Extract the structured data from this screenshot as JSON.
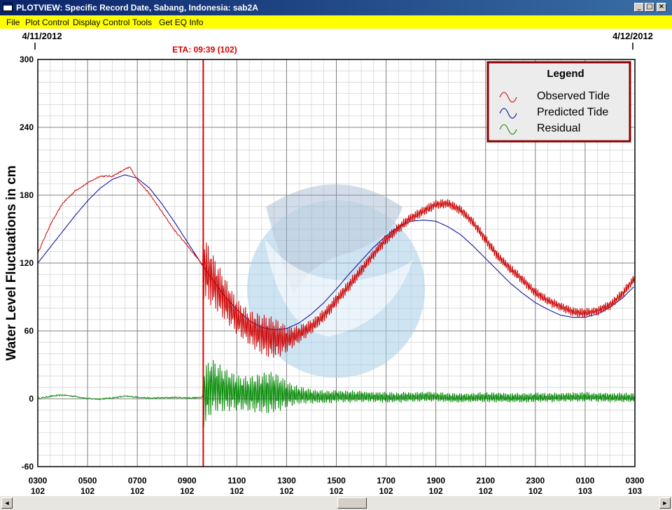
{
  "window": {
    "title": "PLOTVIEW: Specific Record Date, Sabang, Indonesia: sab2A",
    "minimize_glyph": "_",
    "maximize_glyph": "□",
    "close_glyph": "×"
  },
  "menu": [
    "File",
    "Plot Control",
    "Display Control",
    "Tools",
    "Get EQ Info"
  ],
  "scrollbar": {
    "left_glyph": "◄",
    "right_glyph": "►"
  },
  "colors": {
    "menubar": "#ffff00",
    "observed": "#cc0000",
    "predicted": "#000099",
    "residual": "#008800",
    "eta_line": "#dd0000",
    "legend_border": "#8b0000",
    "watermark": "#9fc4e0"
  },
  "chart_data": {
    "type": "line",
    "date_start": "4/11/2012",
    "date_end": "4/12/2012",
    "eta_label": "ETA: 09:39 (102)",
    "eta_hour": 9.65,
    "ylabel": "Water Level Fluctuations in cm",
    "ylim": [
      -60,
      300
    ],
    "xlim": [
      3,
      27
    ],
    "yticks": [
      300,
      240,
      180,
      120,
      60,
      0,
      -60
    ],
    "xticks": [
      {
        "x": 3,
        "time": "0300",
        "day": "102"
      },
      {
        "x": 5,
        "time": "0500",
        "day": "102"
      },
      {
        "x": 7,
        "time": "0700",
        "day": "102"
      },
      {
        "x": 9,
        "time": "0900",
        "day": "102"
      },
      {
        "x": 11,
        "time": "1100",
        "day": "102"
      },
      {
        "x": 13,
        "time": "1300",
        "day": "102"
      },
      {
        "x": 15,
        "time": "1500",
        "day": "102"
      },
      {
        "x": 17,
        "time": "1700",
        "day": "102"
      },
      {
        "x": 19,
        "time": "1900",
        "day": "102"
      },
      {
        "x": 21,
        "time": "2100",
        "day": "102"
      },
      {
        "x": 23,
        "time": "2300",
        "day": "102"
      },
      {
        "x": 25,
        "time": "0100",
        "day": "103"
      },
      {
        "x": 27,
        "time": "0300",
        "day": "103"
      }
    ],
    "grid": true,
    "legend": {
      "title": "Legend",
      "position": "top-right",
      "entries": [
        "Observed Tide",
        "Predicted Tide",
        "Residual"
      ]
    },
    "series": [
      {
        "name": "Observed Tide",
        "x": [
          3,
          3.5,
          4,
          4.5,
          5,
          5.5,
          6,
          6.5,
          6.7,
          7,
          7.5,
          8,
          8.5,
          9,
          9.5,
          10,
          10.5,
          11,
          11.5,
          12,
          12.5,
          13,
          13.5,
          14,
          14.5,
          15,
          15.5,
          16,
          16.5,
          17,
          17.5,
          18,
          18.5,
          19,
          19.5,
          20,
          20.5,
          21,
          21.5,
          22,
          22.5,
          23,
          23.5,
          24,
          24.5,
          25,
          25.5,
          26,
          26.5,
          27
        ],
        "y": [
          128,
          153,
          172,
          183,
          190,
          196,
          196,
          202,
          204,
          193,
          180,
          164,
          148,
          135,
          121,
          105,
          88,
          72,
          62,
          56,
          53,
          52,
          56,
          63,
          73,
          86,
          99,
          113,
          127,
          140,
          150,
          159,
          165,
          171,
          172,
          166,
          155,
          140,
          125,
          114,
          104,
          93,
          86,
          81,
          76,
          75,
          77,
          82,
          92,
          106
        ]
      },
      {
        "name": "Predicted Tide",
        "x": [
          3,
          3.5,
          4,
          4.5,
          5,
          5.5,
          6,
          6.5,
          7,
          7.5,
          8,
          8.5,
          9,
          9.5,
          10,
          10.5,
          11,
          11.5,
          12,
          12.5,
          13,
          13.5,
          14,
          14.5,
          15,
          15.5,
          16,
          16.5,
          17,
          17.5,
          18,
          18.5,
          19,
          19.5,
          20,
          20.5,
          21,
          21.5,
          22,
          22.5,
          23,
          23.5,
          24,
          24.5,
          25,
          25.5,
          26,
          26.5,
          27
        ],
        "y": [
          120,
          134,
          148,
          162,
          175,
          186,
          194,
          198,
          195,
          186,
          172,
          156,
          139,
          122,
          106,
          91,
          79,
          69,
          63,
          61,
          62,
          67,
          75,
          85,
          97,
          110,
          122,
          134,
          144,
          152,
          157,
          158,
          157,
          152,
          145,
          135,
          124,
          113,
          102,
          93,
          85,
          79,
          74,
          72,
          72,
          75,
          81,
          89,
          100
        ]
      },
      {
        "name": "Residual",
        "x": [
          3,
          3.5,
          4,
          4.5,
          5,
          5.5,
          6,
          6.5,
          7,
          7.5,
          8,
          8.5,
          9,
          9.5,
          9.75,
          10,
          10.5,
          11,
          11.5,
          12,
          12.5,
          13,
          13.5,
          14,
          14.5,
          15,
          15.5,
          16,
          16.5,
          17,
          17.5,
          18,
          18.5,
          19,
          19.5,
          20,
          20.5,
          21,
          21.5,
          22,
          22.5,
          23,
          23.5,
          24,
          24.5,
          25,
          25.5,
          26,
          26.5,
          27
        ],
        "y": [
          -2,
          4,
          7,
          4,
          -2,
          -3,
          0,
          4,
          2,
          -1,
          0,
          1,
          0,
          0,
          8,
          32,
          20,
          14,
          10,
          12,
          14,
          10,
          6,
          4,
          3,
          4,
          3,
          4,
          2,
          1,
          1,
          2,
          3,
          3,
          1,
          0,
          1,
          2,
          1,
          0,
          0,
          1,
          1,
          2,
          2,
          3,
          2,
          1,
          1,
          0
        ]
      }
    ]
  }
}
